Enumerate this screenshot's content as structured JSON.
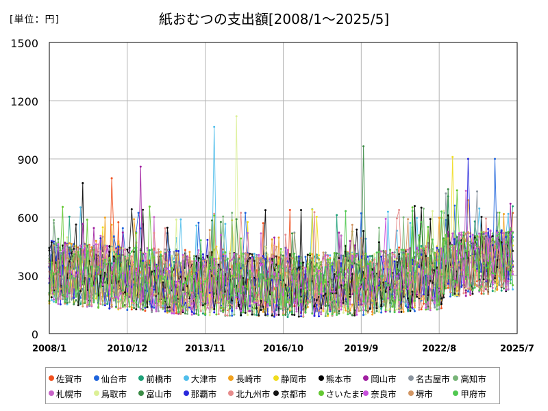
{
  "unit_label": "[単位：円]",
  "chart_data": {
    "type": "line",
    "title": "紙おむつの支出額[2008/1～2025/5]",
    "xlabel": "",
    "ylabel": "",
    "ylim": [
      0,
      1500
    ],
    "yticks": [
      0,
      300,
      600,
      900,
      1200,
      1500
    ],
    "xlim": [
      "2008-01",
      "2025-07"
    ],
    "xticks": [
      "2008/1",
      "2010/12",
      "2013/11",
      "2016/10",
      "2019/9",
      "2022/8",
      "2025/7"
    ],
    "grid": true,
    "legend_position": "bottom",
    "series": [
      {
        "name": "佐賀市",
        "color": "#f0501e",
        "peaks": [
          {
            "x": "2010-05",
            "y": 800
          }
        ]
      },
      {
        "name": "仙台市",
        "color": "#1e64dc",
        "peaks": [
          {
            "x": "2024-09",
            "y": 900
          }
        ]
      },
      {
        "name": "前橋市",
        "color": "#1ea078",
        "peaks": []
      },
      {
        "name": "大津市",
        "color": "#50beeb",
        "peaks": [
          {
            "x": "2014-03",
            "y": 1065
          }
        ]
      },
      {
        "name": "長崎市",
        "color": "#f0a01e",
        "peaks": []
      },
      {
        "name": "静岡市",
        "color": "#f0dc1e",
        "peaks": [
          {
            "x": "2023-02",
            "y": 910
          }
        ]
      },
      {
        "name": "熊本市",
        "color": "#000000",
        "peaks": [
          {
            "x": "2009-04",
            "y": 775
          }
        ]
      },
      {
        "name": "岡山市",
        "color": "#a01ea0",
        "peaks": [
          {
            "x": "2011-06",
            "y": 860
          }
        ]
      },
      {
        "name": "名古屋市",
        "color": "#8c96a0",
        "peaks": []
      },
      {
        "name": "高知市",
        "color": "#78b478",
        "peaks": []
      },
      {
        "name": "札幌市",
        "color": "#c864c8",
        "peaks": []
      },
      {
        "name": "鳥取市",
        "color": "#dcf096",
        "peaks": [
          {
            "x": "2015-01",
            "y": 1120
          }
        ]
      },
      {
        "name": "富山市",
        "color": "#3c8c46",
        "peaks": [
          {
            "x": "2019-10",
            "y": 965
          }
        ]
      },
      {
        "name": "那覇市",
        "color": "#2828dc",
        "peaks": [
          {
            "x": "2023-09",
            "y": 900
          }
        ]
      },
      {
        "name": "北九州市",
        "color": "#e68c8c",
        "peaks": []
      },
      {
        "name": "京都市",
        "color": "#141414",
        "peaks": []
      },
      {
        "name": "さいたま市",
        "color": "#64c832",
        "peaks": []
      },
      {
        "name": "奈良市",
        "color": "#c850dc",
        "peaks": []
      },
      {
        "name": "堺市",
        "color": "#d29664",
        "peaks": []
      },
      {
        "name": "甲府市",
        "color": "#50c850",
        "peaks": []
      }
    ]
  }
}
